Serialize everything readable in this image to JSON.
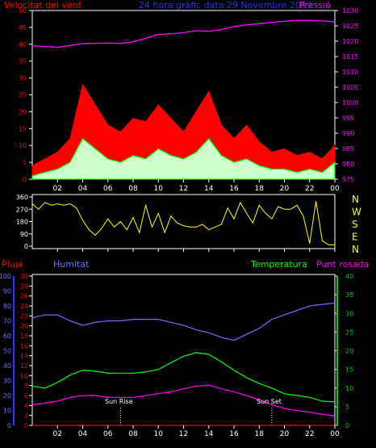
{
  "header": {
    "wind_label": "Velocitat del vent",
    "title": "24 hora gràfic data 29 Novembre 2019",
    "pressure_label": "Pressió"
  },
  "colors": {
    "wind_gust": "#ff0000",
    "wind_avg": "#00ff00",
    "wind_low": "#ccffcc",
    "pressure": "#ff00ff",
    "direction": "#ffff00",
    "humidity": "#6f6fff",
    "temperature": "#00ff00",
    "dewpoint": "#ff00ff",
    "rain": "#ff0000",
    "axis_red": "#ff0000",
    "axis_blue": "#3333ff",
    "axis_green": "#00cc00",
    "axis_white": "#ffffff",
    "title_blue": "#2233ff",
    "compass_yellow": "#ffff00"
  },
  "x_ticks": [
    "02",
    "04",
    "06",
    "08",
    "10",
    "12",
    "14",
    "16",
    "18",
    "20",
    "22",
    "00"
  ],
  "compass": [
    "N",
    "W",
    "S",
    "E",
    "N"
  ],
  "lower": {
    "rain_label": "Pluja",
    "humidity_label": "Humitat",
    "temperature_label": "Temperatura",
    "dewpoint_label": "Punt rosada",
    "sunrise_label": "Sun Rise",
    "sunset_label": "Sun Set"
  },
  "chart_data": [
    {
      "type": "area",
      "title": "Velocitat del vent",
      "x_label_ticks": [
        "02",
        "04",
        "06",
        "08",
        "10",
        "12",
        "14",
        "16",
        "18",
        "20",
        "22",
        "00"
      ],
      "ylim_wind": [
        0,
        50
      ],
      "yticks_wind": [
        0,
        5,
        10,
        15,
        20,
        25,
        30,
        35,
        40,
        45,
        50
      ],
      "ylim_pressure": [
        975,
        1030
      ],
      "yticks_pressure": [
        975,
        980,
        985,
        990,
        995,
        1000,
        1005,
        1010,
        1015,
        1020,
        1025,
        1030
      ],
      "x_hours": [
        0,
        1,
        2,
        3,
        4,
        5,
        6,
        7,
        8,
        9,
        10,
        11,
        12,
        13,
        14,
        15,
        16,
        17,
        18,
        19,
        20,
        21,
        22,
        23,
        24
      ],
      "series": [
        {
          "name": "Velocitat del vent",
          "values": [
            4,
            6,
            8,
            12,
            28,
            22,
            16,
            14,
            18,
            17,
            22,
            18,
            14,
            20,
            26,
            16,
            12,
            16,
            11,
            8,
            9,
            7,
            8,
            6,
            10
          ]
        },
        {
          "name": "wind_avg",
          "values": [
            1,
            2,
            3,
            5,
            12,
            9,
            6,
            5,
            7,
            6,
            9,
            7,
            6,
            8,
            12,
            7,
            5,
            6,
            4,
            3,
            3,
            2,
            3,
            2,
            5
          ]
        },
        {
          "name": "Pressió",
          "values": [
            1018.5,
            1018.3,
            1018.0,
            1018.6,
            1019.2,
            1019.3,
            1019.4,
            1019.3,
            1019.8,
            1021.0,
            1022.2,
            1022.4,
            1022.8,
            1023.4,
            1023.2,
            1023.8,
            1024.8,
            1025.3,
            1025.7,
            1026.1,
            1026.5,
            1026.8,
            1026.8,
            1026.6,
            1026.3
          ]
        }
      ]
    },
    {
      "type": "line",
      "title": "",
      "ylim": [
        0,
        360
      ],
      "yticks": [
        0,
        90,
        180,
        270,
        360
      ],
      "x_hours": [
        0,
        0.5,
        1,
        1.5,
        2,
        2.5,
        3,
        3.5,
        4,
        4.5,
        5,
        5.5,
        6,
        6.5,
        7,
        7.5,
        8,
        8.5,
        9,
        9.5,
        10,
        10.5,
        11,
        11.5,
        12,
        12.5,
        13,
        13.5,
        14,
        14.5,
        15,
        15.5,
        16,
        16.5,
        17,
        17.5,
        18,
        18.5,
        19,
        19.5,
        20,
        20.5,
        21,
        21.5,
        22,
        22.5,
        23,
        23.5,
        24
      ],
      "series": [
        {
          "name": "direction",
          "values": [
            310,
            270,
            320,
            300,
            310,
            300,
            310,
            280,
            190,
            120,
            80,
            130,
            200,
            140,
            180,
            120,
            210,
            100,
            300,
            140,
            240,
            100,
            220,
            170,
            150,
            140,
            140,
            160,
            120,
            140,
            160,
            280,
            200,
            320,
            240,
            170,
            300,
            240,
            200,
            290,
            270,
            270,
            300,
            220,
            20,
            330,
            40,
            10,
            10
          ]
        }
      ]
    },
    {
      "type": "line",
      "title": "",
      "x_hours": [
        0,
        1,
        2,
        3,
        4,
        5,
        6,
        7,
        8,
        9,
        10,
        11,
        12,
        13,
        14,
        15,
        16,
        17,
        18,
        19,
        20,
        21,
        22,
        23,
        24
      ],
      "yticks_rain": [
        0,
        2,
        4,
        6,
        8,
        10,
        12,
        14,
        16,
        18,
        20,
        22,
        24,
        26,
        28,
        30
      ],
      "yticks_humidity": [
        0,
        10,
        20,
        30,
        40,
        50,
        60,
        70,
        80,
        90,
        100
      ],
      "yticks_temperature": [
        0,
        5,
        10,
        15,
        20,
        25,
        30,
        35,
        40
      ],
      "ylim_rain": [
        0,
        30
      ],
      "ylim_humidity": [
        0,
        100
      ],
      "ylim_temperature": [
        0,
        40
      ],
      "series": [
        {
          "name": "Humitat",
          "values": [
            72,
            74,
            74,
            70,
            67,
            69,
            70,
            70,
            71,
            71,
            71,
            69,
            67,
            64,
            62,
            59,
            57,
            61,
            65,
            71,
            74,
            77,
            80,
            81,
            82
          ]
        },
        {
          "name": "Temperatura",
          "values": [
            10.5,
            10.0,
            11.5,
            13.5,
            14.8,
            14.5,
            14.0,
            14.0,
            14.0,
            14.3,
            15.0,
            16.8,
            18.5,
            19.5,
            19.0,
            17.0,
            14.8,
            12.8,
            11.2,
            10.0,
            8.5,
            8.0,
            7.5,
            6.5,
            6.3
          ]
        },
        {
          "name": "Punt rosada",
          "values": [
            5.5,
            6.0,
            6.5,
            7.5,
            8.0,
            8.0,
            7.5,
            7.5,
            7.5,
            8.0,
            8.5,
            9.0,
            9.8,
            10.5,
            10.8,
            9.8,
            9.0,
            8.0,
            6.8,
            5.5,
            4.5,
            4.0,
            3.5,
            3.0,
            2.5
          ]
        },
        {
          "name": "Pluja",
          "values": [
            0,
            0,
            0,
            0,
            0,
            0,
            0,
            0,
            0,
            0,
            0,
            0,
            0,
            0,
            0,
            0,
            0,
            0,
            0,
            0,
            0,
            0,
            0,
            0,
            0
          ]
        }
      ],
      "annotations": [
        {
          "label": "Sun Rise",
          "x_hour": 7.0
        },
        {
          "label": "Sun Set",
          "x_hour": 19.0
        }
      ]
    }
  ]
}
